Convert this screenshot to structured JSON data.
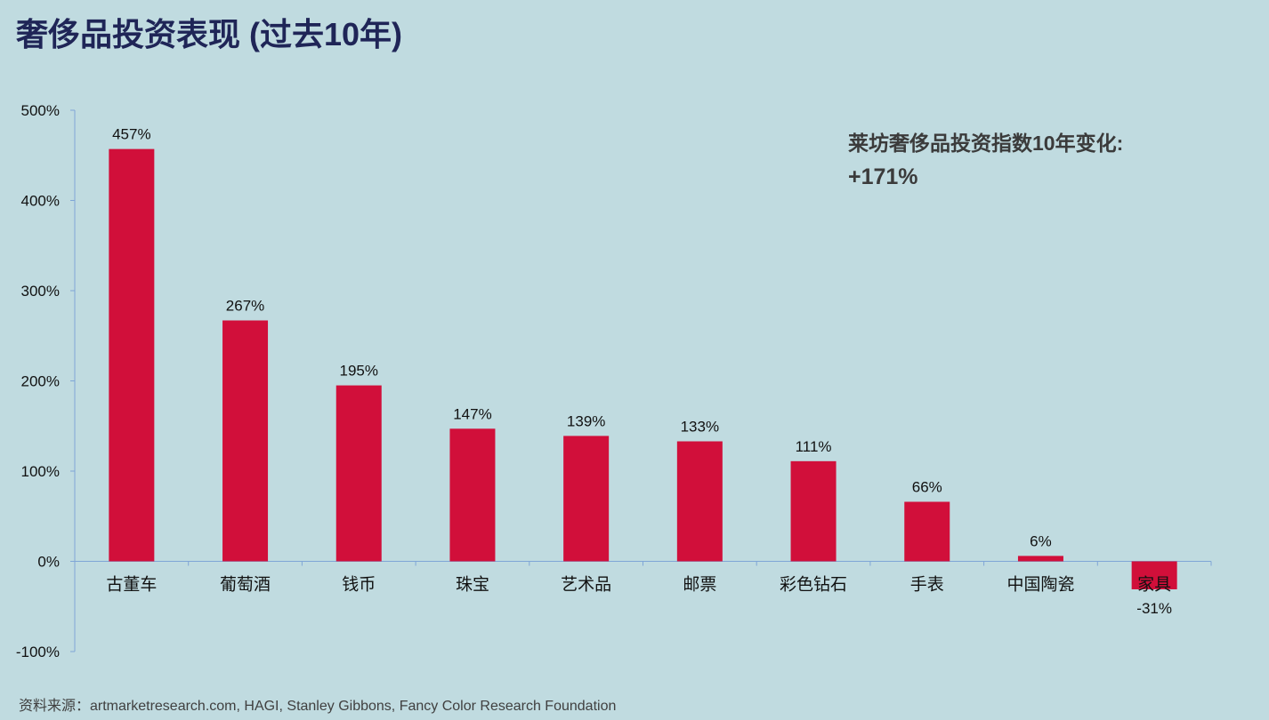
{
  "title": "奢侈品投资表现 (过去10年)",
  "annotation": {
    "text": "莱坊奢侈品投资指数10年变化:",
    "value": "+171%"
  },
  "source": "资料来源：artmarketresearch.com, HAGI, Stanley Gibbons, Fancy Color Research Foundation",
  "colors": {
    "bar": "#d10f3a",
    "axis": "#7fa6d6",
    "background": "#c0dbe0",
    "title": "#1f2557"
  },
  "chart_data": {
    "type": "bar",
    "categories": [
      "古董车",
      "葡萄酒",
      "钱币",
      "珠宝",
      "艺术品",
      "邮票",
      "彩色钻石",
      "手表",
      "中国陶瓷",
      "家具"
    ],
    "values": [
      457,
      267,
      195,
      147,
      139,
      133,
      111,
      66,
      6,
      -31
    ],
    "data_labels": [
      "457%",
      "267%",
      "195%",
      "147%",
      "139%",
      "133%",
      "111%",
      "66%",
      "6%",
      "-31%"
    ],
    "yticks": [
      500,
      400,
      300,
      200,
      100,
      0,
      -100
    ],
    "ytick_labels": [
      "500%",
      "400%",
      "300%",
      "200%",
      "100%",
      "0%",
      "-100%"
    ],
    "ylim": [
      -100,
      500
    ],
    "grid": false
  }
}
